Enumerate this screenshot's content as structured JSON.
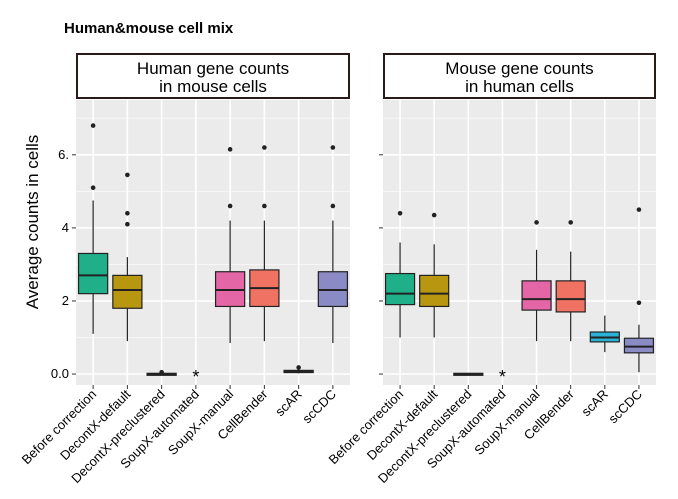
{
  "title": "Human&mouse cell mix",
  "chart_data": [
    {
      "type": "boxplot",
      "panel_title_line1": "Human gene counts",
      "panel_title_line2": "in mouse cells",
      "ylabel": "Average counts in cells",
      "ylim": [
        -0.3,
        7.5
      ],
      "yticks": [
        0,
        2,
        4,
        6
      ],
      "tick_labels": [
        "0.0",
        "2",
        "4",
        "6."
      ],
      "categories": [
        "Before correction",
        "DecontX-default",
        "DecontX-preclustered",
        "SoupX-automated",
        "SoupX-manual",
        "CellBender",
        "scAR",
        "scCDC"
      ],
      "colors": [
        "#1fb08a",
        "#b8960f",
        "#e84a85",
        "#cccccc",
        "#e466a6",
        "#f07263",
        "#2ab3d6",
        "#8a8ac4"
      ],
      "boxes": [
        {
          "q1": 2.2,
          "median": 2.7,
          "q3": 3.3,
          "wlow": 1.1,
          "whigh": 4.75,
          "outliers": [
            5.1,
            6.8
          ]
        },
        {
          "q1": 1.8,
          "median": 2.3,
          "q3": 2.7,
          "wlow": 0.9,
          "whigh": 3.2,
          "outliers": [
            4.1,
            4.4,
            5.45
          ]
        },
        {
          "q1": -0.02,
          "median": 0.0,
          "q3": 0.02,
          "wlow": -0.02,
          "whigh": 0.02,
          "outliers": [
            0.05
          ]
        },
        null,
        {
          "q1": 1.85,
          "median": 2.3,
          "q3": 2.8,
          "wlow": 0.85,
          "whigh": 4.2,
          "outliers": [
            4.6,
            6.15
          ]
        },
        {
          "q1": 1.85,
          "median": 2.35,
          "q3": 2.85,
          "wlow": 0.9,
          "whigh": 4.2,
          "outliers": [
            4.6,
            6.2
          ]
        },
        {
          "q1": 0.04,
          "median": 0.07,
          "q3": 0.1,
          "wlow": 0.02,
          "whigh": 0.14,
          "outliers": [
            0.18
          ]
        },
        {
          "q1": 1.85,
          "median": 2.3,
          "q3": 2.8,
          "wlow": 0.85,
          "whigh": 4.2,
          "outliers": [
            4.6,
            6.2
          ]
        }
      ],
      "missing_marker": "*"
    },
    {
      "type": "boxplot",
      "panel_title_line1": "Mouse gene counts",
      "panel_title_line2": "in human cells",
      "ylim": [
        -0.3,
        7.5
      ],
      "categories": [
        "Before correction",
        "DecontX-default",
        "DecontX-preclustered",
        "SoupX-automated",
        "SoupX-manual",
        "CellBender",
        "scAR",
        "scCDC"
      ],
      "colors": [
        "#1fb08a",
        "#b8960f",
        "#e84a85",
        "#cccccc",
        "#e466a6",
        "#f07263",
        "#2ab3d6",
        "#8a8ac4"
      ],
      "boxes": [
        {
          "q1": 1.9,
          "median": 2.2,
          "q3": 2.75,
          "wlow": 1.0,
          "whigh": 3.6,
          "outliers": [
            4.4
          ]
        },
        {
          "q1": 1.85,
          "median": 2.2,
          "q3": 2.7,
          "wlow": 1.0,
          "whigh": 3.55,
          "outliers": [
            4.35
          ]
        },
        {
          "q1": -0.02,
          "median": 0.0,
          "q3": 0.02,
          "wlow": -0.02,
          "whigh": 0.02,
          "outliers": []
        },
        null,
        {
          "q1": 1.75,
          "median": 2.05,
          "q3": 2.55,
          "wlow": 0.9,
          "whigh": 3.4,
          "outliers": [
            4.15
          ]
        },
        {
          "q1": 1.7,
          "median": 2.05,
          "q3": 2.55,
          "wlow": 0.9,
          "whigh": 3.35,
          "outliers": [
            4.15
          ]
        },
        {
          "q1": 0.88,
          "median": 1.0,
          "q3": 1.15,
          "wlow": 0.6,
          "whigh": 1.6,
          "outliers": []
        },
        {
          "q1": 0.58,
          "median": 0.75,
          "q3": 0.98,
          "wlow": 0.05,
          "whigh": 1.35,
          "outliers": [
            1.95,
            4.5
          ]
        }
      ],
      "missing_marker": "*"
    }
  ]
}
